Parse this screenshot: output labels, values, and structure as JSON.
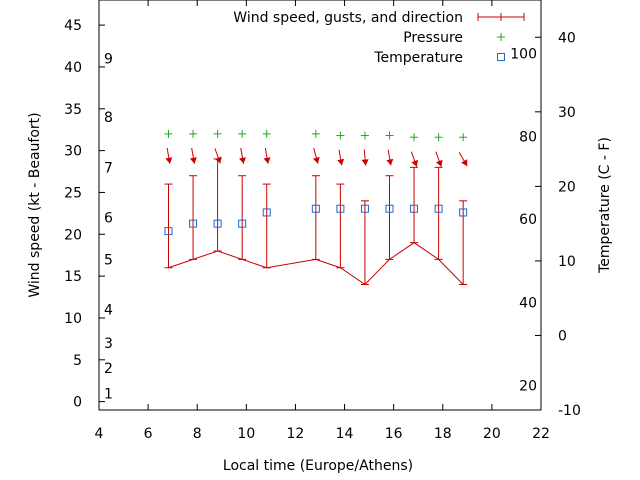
{
  "chart_data": {
    "type": "line",
    "xlabel": "Local time (Europe/Athens)",
    "ylabel": "Wind speed (kt - Beaufort)",
    "y2label": "Temperature (C - F)",
    "xlim": [
      4,
      22
    ],
    "ylim": [
      -1,
      48
    ],
    "y2lim": [
      -10,
      45
    ],
    "x_ticks": [
      "4",
      "6",
      "8",
      "10",
      "12",
      "14",
      "16",
      "18",
      "20",
      "22"
    ],
    "y_ticks": [
      "0",
      "5",
      "10",
      "15",
      "20",
      "25",
      "30",
      "35",
      "40",
      "45"
    ],
    "y2_ticks": [
      "-10",
      "0",
      "10",
      "20",
      "30",
      "40"
    ],
    "beaufort_labels": [
      {
        "label": "1",
        "y": 1
      },
      {
        "label": "2",
        "y": 4
      },
      {
        "label": "3",
        "y": 7
      },
      {
        "label": "4",
        "y": 11
      },
      {
        "label": "5",
        "y": 17
      },
      {
        "label": "6",
        "y": 22
      },
      {
        "label": "7",
        "y": 28
      },
      {
        "label": "8",
        "y": 34
      },
      {
        "label": "9",
        "y": 41
      }
    ],
    "fahrenheit_labels": [
      {
        "label": "20",
        "y2": -6.7
      },
      {
        "label": "40",
        "y2": 4.4
      },
      {
        "label": "60",
        "y2": 15.6
      },
      {
        "label": "80",
        "y2": 26.7
      },
      {
        "label": "100",
        "y2": 37.8
      }
    ],
    "legend": {
      "position": "top-right",
      "wind": "Wind speed, gusts, and direction",
      "pressure": "Pressure",
      "temperature": "Temperature"
    },
    "colors": {
      "wind": "#cc0000",
      "pressure": "#22aa22",
      "temperature": "#2266cc"
    },
    "series": [
      {
        "name": "Wind speed, gusts, and direction",
        "x": [
          6.83,
          7.83,
          8.83,
          9.83,
          10.83,
          12.83,
          13.83,
          14.83,
          15.83,
          16.83,
          17.83,
          18.83
        ],
        "values": [
          16,
          17,
          18,
          17,
          16,
          17,
          16,
          14,
          17,
          19,
          17,
          14
        ],
        "gusts": [
          26,
          27,
          29,
          27,
          26,
          27,
          26,
          24,
          27,
          28,
          28,
          24
        ],
        "direction_deg": [
          350,
          350,
          340,
          350,
          350,
          345,
          350,
          355,
          350,
          340,
          340,
          330
        ]
      },
      {
        "name": "Pressure",
        "x": [
          6.83,
          7.83,
          8.83,
          9.83,
          10.83,
          12.83,
          13.83,
          14.83,
          15.83,
          16.83,
          17.83,
          18.83
        ],
        "values": [
          32,
          32,
          32,
          32,
          32,
          32,
          31.8,
          31.8,
          31.8,
          31.6,
          31.6,
          31.6
        ]
      },
      {
        "name": "Temperature",
        "x": [
          6.83,
          7.83,
          8.83,
          9.83,
          10.83,
          12.83,
          13.83,
          14.83,
          15.83,
          16.83,
          17.83,
          18.83
        ],
        "values": [
          14,
          15,
          15,
          15,
          16.5,
          17,
          17,
          17,
          17,
          17,
          17,
          16.5
        ]
      }
    ]
  }
}
